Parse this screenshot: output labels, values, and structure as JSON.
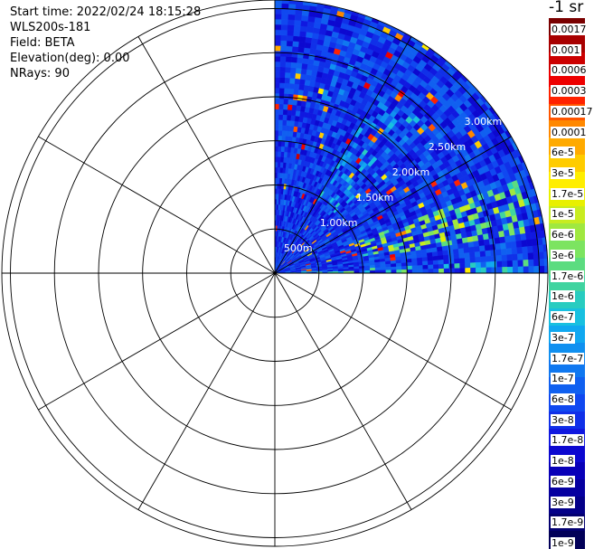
{
  "info": {
    "start_time": "Start time: 2022/02/24 18:15:28",
    "instrument": "WLS200s-181",
    "field": "Field: BETA",
    "elevation": "Elevation(deg): 0.00",
    "nrays": "NRays: 90"
  },
  "colorbar": {
    "title": "-1 sr",
    "colors": [
      "#7a0000",
      "#a80000",
      "#cc0000",
      "#ee0000",
      "#ff2200",
      "#ff5500",
      "#ff8800",
      "#ffaa00",
      "#ffcc00",
      "#ffee00",
      "#e8f000",
      "#c8ec20",
      "#a0e840",
      "#7ce460",
      "#5cdc80",
      "#40d4a0",
      "#28ccc0",
      "#18c0e0",
      "#10a8f0",
      "#1090f0",
      "#1078f0",
      "#1060f0",
      "#1048f0",
      "#1030e8",
      "#1018e0",
      "#0c08d0",
      "#0800b8",
      "#0600a0",
      "#040088",
      "#030070",
      "#020058"
    ],
    "labels": [
      "0.0017",
      "0.001",
      "0.0006",
      "0.0003",
      "0.00017",
      "0.0001",
      "6e-5",
      "3e-5",
      "1.7e-5",
      "1e-5",
      "6e-6",
      "3e-6",
      "1.7e-6",
      "1e-6",
      "6e-7",
      "3e-7",
      "1.7e-7",
      "1e-7",
      "6e-8",
      "3e-8",
      "1.7e-8",
      "1e-8",
      "6e-9",
      "3e-9",
      "1.7e-9",
      "1e-9"
    ]
  },
  "chart_data": {
    "type": "heatmap",
    "projection": "polar-ppi",
    "field": "BETA",
    "unit": "-1 sr",
    "scan_sector_deg": [
      0,
      90
    ],
    "range_rings_km": [
      0.5,
      1.0,
      1.5,
      2.0,
      2.5,
      3.0
    ],
    "ring_labels": [
      "500m",
      "1.00km",
      "1.50km",
      "2.00km",
      "2.50km",
      "3.00km"
    ],
    "max_range_km": 3.0,
    "spokes_deg": [
      0,
      30,
      60,
      90,
      120,
      150,
      180,
      210,
      240,
      270,
      300,
      330
    ],
    "background_level": "3e-8",
    "features": [
      {
        "azimuth_deg": [
          30,
          45
        ],
        "range_km": [
          0.9,
          2.4
        ],
        "level": "1.7e-7"
      },
      {
        "azimuth_deg": [
          68,
          80
        ],
        "range_km": [
          1.0,
          3.0
        ],
        "level": "3e-6"
      },
      {
        "azimuth_deg": [
          86,
          90
        ],
        "range_km": [
          0.0,
          3.0
        ],
        "level": "1e-6"
      },
      {
        "azimuth_deg": [
          15,
          20
        ],
        "range_km": [
          1.8,
          2.8
        ],
        "level": "6e-8"
      }
    ]
  }
}
